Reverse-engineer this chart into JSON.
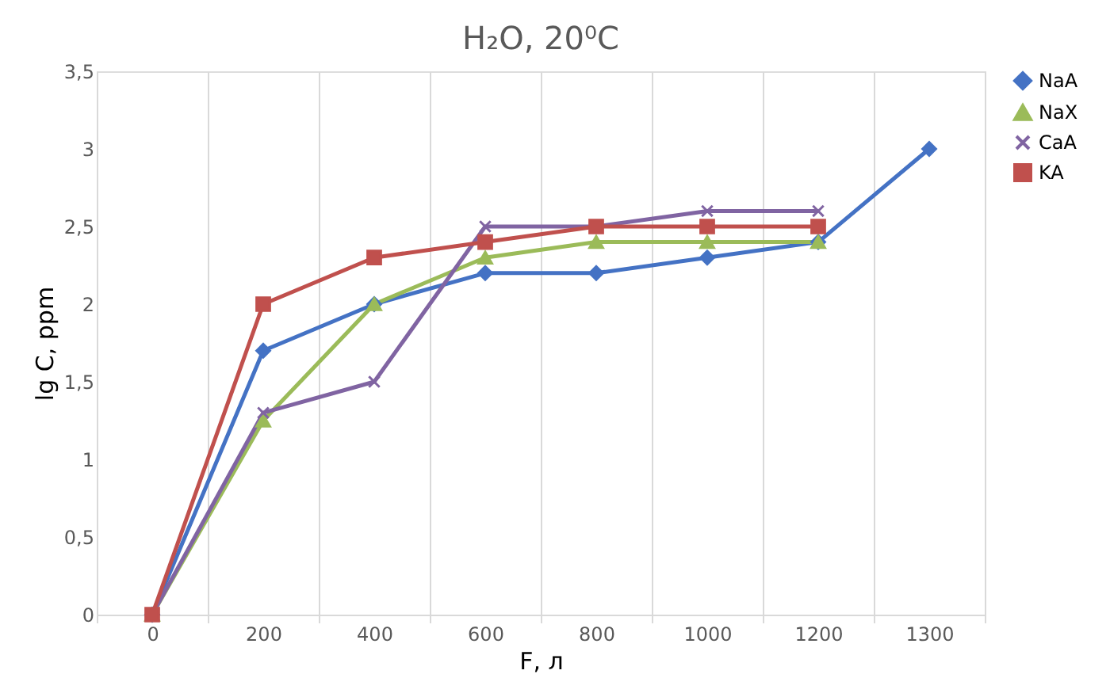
{
  "chart_data": {
    "type": "line",
    "title": "H₂O, 20⁰C",
    "xlabel": "F, л",
    "ylabel": "lg C, ppm",
    "categories": [
      "0",
      "200",
      "400",
      "600",
      "800",
      "1000",
      "1200",
      "1300"
    ],
    "series": [
      {
        "name": "NaA",
        "color": "#4472c4",
        "marker": "diamond",
        "values": [
          0,
          1.7,
          2.0,
          2.2,
          2.2,
          2.3,
          2.4,
          3.0
        ]
      },
      {
        "name": "NaX",
        "color": "#9bbb59",
        "marker": "triangle",
        "values": [
          0,
          1.25,
          2.0,
          2.3,
          2.4,
          2.4,
          2.4,
          null
        ]
      },
      {
        "name": "CaA",
        "color": "#8064a2",
        "marker": "cross",
        "values": [
          0,
          1.3,
          1.5,
          2.5,
          2.5,
          2.6,
          2.6,
          null
        ]
      },
      {
        "name": "KA",
        "color": "#c0504d",
        "marker": "square",
        "values": [
          0,
          2.0,
          2.3,
          2.4,
          2.5,
          2.5,
          2.5,
          null
        ]
      }
    ],
    "ylim": [
      0,
      3.5
    ],
    "yticks": [
      0,
      {
        "value": 0.5,
        "label": "0,5"
      },
      1,
      {
        "value": 1.5,
        "label": "1,5"
      },
      2,
      {
        "value": 2.5,
        "label": "2,5"
      },
      3,
      {
        "value": 3.5,
        "label": "3,5"
      }
    ],
    "grid": "x",
    "legend": "right",
    "line_style": "solid"
  }
}
